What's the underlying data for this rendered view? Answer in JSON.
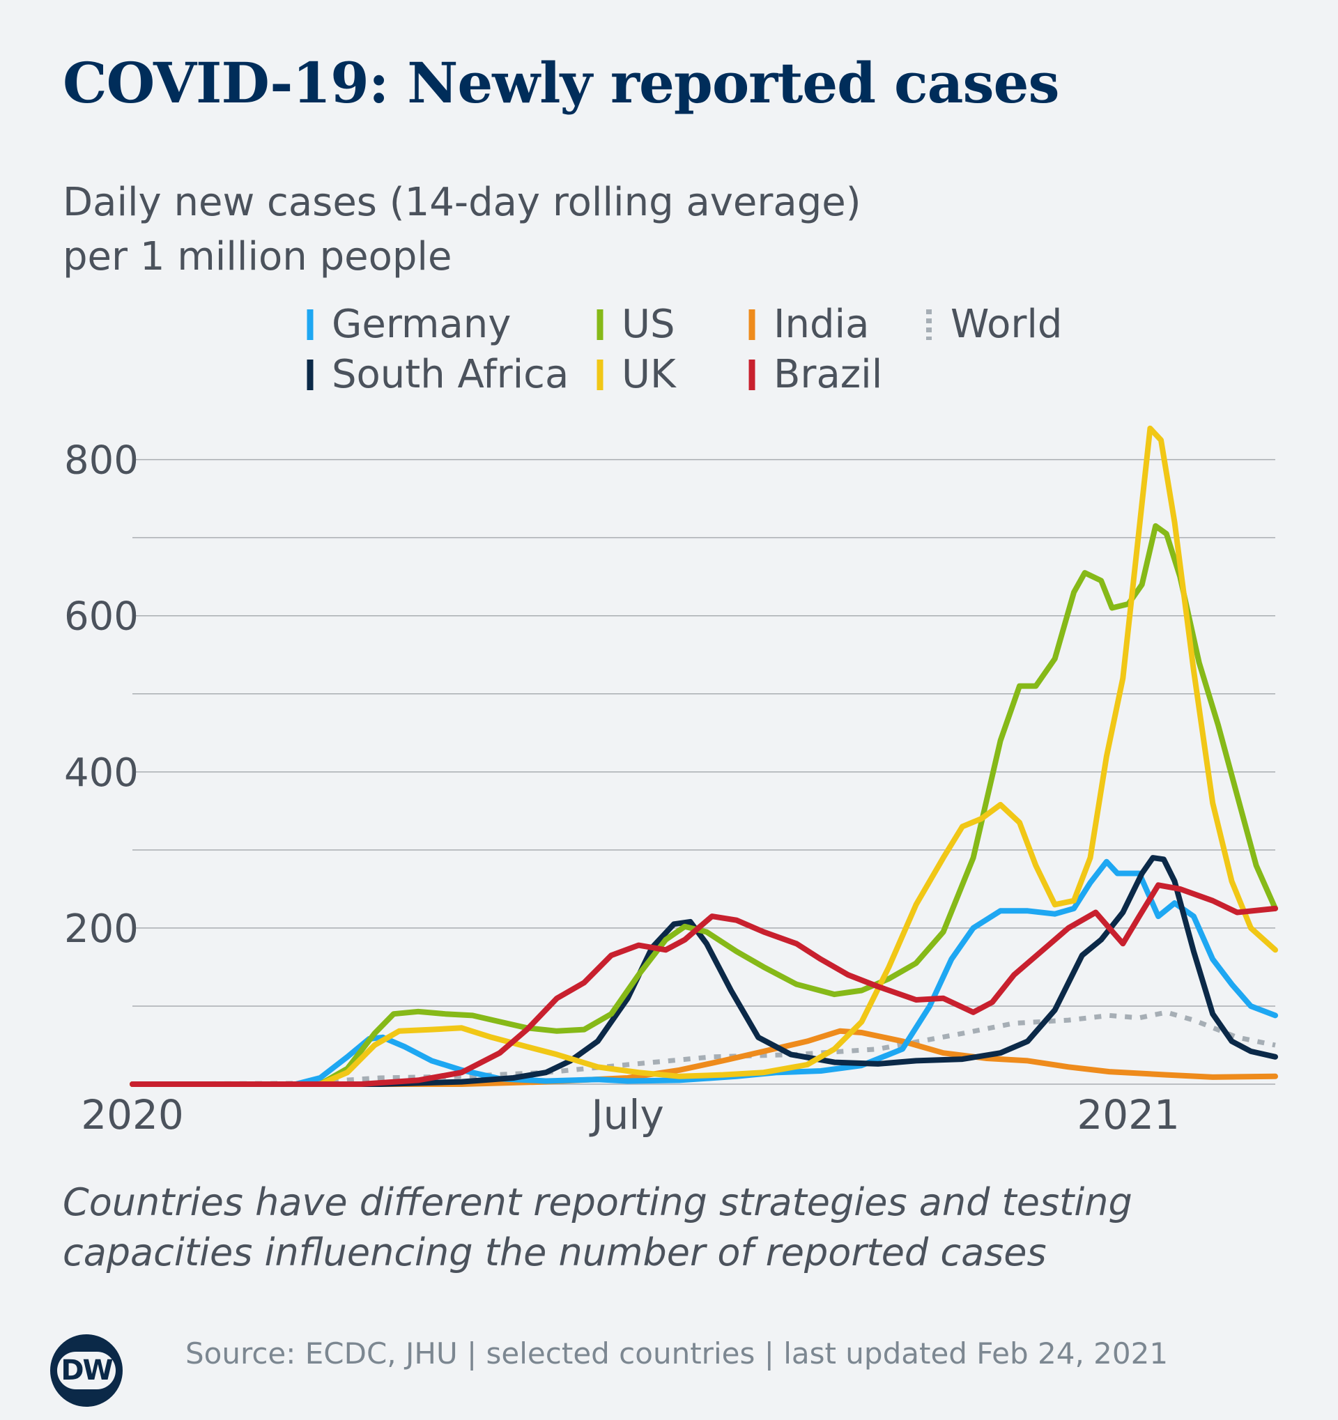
{
  "header": {
    "title": "COVID-19: Newly reported cases",
    "subtitle_line1": "Daily new cases (14-day rolling average)",
    "subtitle_line2": "per 1 million people"
  },
  "footer": {
    "note_line1": "Countries have different reporting strategies and testing",
    "note_line2": "capacities influencing the number of reported cases",
    "source": "Source: ECDC, JHU | selected countries | last updated Feb 24, 2021",
    "logo_text": "DW"
  },
  "colors": {
    "Germany": "#1ea7f2",
    "South Africa": "#0b2948",
    "US": "#86b918",
    "UK": "#f1c716",
    "India": "#ee8b1c",
    "Brazil": "#c8202e",
    "World": "#a6aeb5",
    "grid": "#a9adb1"
  },
  "chart_data": {
    "type": "line",
    "title": "COVID-19: Newly reported cases",
    "ylabel": "Daily new cases (14-day rolling average) per 1 million people",
    "x_unit": "date",
    "xlim": [
      "2020-01-01",
      "2021-02-24"
    ],
    "ylim": [
      0,
      880
    ],
    "y_ticks": [
      200,
      400,
      600,
      800
    ],
    "y_gridlines": [
      100,
      200,
      300,
      400,
      500,
      600,
      700,
      800
    ],
    "x_ticks": [
      {
        "label": "2020",
        "date": "2020-01-01"
      },
      {
        "label": "July",
        "date": "2020-07-01"
      },
      {
        "label": "2021",
        "date": "2021-01-01"
      }
    ],
    "grid": true,
    "legend_position": "top",
    "legend_order": [
      "Germany",
      "US",
      "India",
      "World",
      "South Africa",
      "UK",
      "Brazil"
    ],
    "series": [
      {
        "name": "Germany",
        "dashed": false,
        "points": [
          [
            "2020-01-01",
            0
          ],
          [
            "2020-03-01",
            0
          ],
          [
            "2020-03-10",
            8
          ],
          [
            "2020-03-20",
            35
          ],
          [
            "2020-03-28",
            58
          ],
          [
            "2020-04-02",
            60
          ],
          [
            "2020-04-10",
            48
          ],
          [
            "2020-04-20",
            30
          ],
          [
            "2020-05-01",
            18
          ],
          [
            "2020-05-15",
            7
          ],
          [
            "2020-06-01",
            4
          ],
          [
            "2020-06-20",
            6
          ],
          [
            "2020-07-01",
            4
          ],
          [
            "2020-07-20",
            5
          ],
          [
            "2020-08-10",
            10
          ],
          [
            "2020-08-25",
            15
          ],
          [
            "2020-09-10",
            17
          ],
          [
            "2020-09-25",
            24
          ],
          [
            "2020-10-10",
            45
          ],
          [
            "2020-10-20",
            100
          ],
          [
            "2020-10-28",
            160
          ],
          [
            "2020-11-05",
            200
          ],
          [
            "2020-11-15",
            222
          ],
          [
            "2020-11-25",
            222
          ],
          [
            "2020-12-05",
            218
          ],
          [
            "2020-12-12",
            225
          ],
          [
            "2020-12-18",
            258
          ],
          [
            "2020-12-24",
            285
          ],
          [
            "2020-12-28",
            270
          ],
          [
            "2021-01-05",
            270
          ],
          [
            "2021-01-12",
            215
          ],
          [
            "2021-01-18",
            232
          ],
          [
            "2021-01-25",
            215
          ],
          [
            "2021-02-01",
            160
          ],
          [
            "2021-02-08",
            128
          ],
          [
            "2021-02-15",
            100
          ],
          [
            "2021-02-24",
            88
          ]
        ]
      },
      {
        "name": "South Africa",
        "dashed": false,
        "points": [
          [
            "2020-01-01",
            0
          ],
          [
            "2020-04-01",
            0
          ],
          [
            "2020-05-01",
            3
          ],
          [
            "2020-05-20",
            8
          ],
          [
            "2020-06-01",
            15
          ],
          [
            "2020-06-10",
            30
          ],
          [
            "2020-06-20",
            55
          ],
          [
            "2020-07-01",
            110
          ],
          [
            "2020-07-10",
            175
          ],
          [
            "2020-07-18",
            205
          ],
          [
            "2020-07-24",
            208
          ],
          [
            "2020-07-30",
            180
          ],
          [
            "2020-08-08",
            120
          ],
          [
            "2020-08-18",
            60
          ],
          [
            "2020-08-30",
            38
          ],
          [
            "2020-09-15",
            28
          ],
          [
            "2020-10-01",
            26
          ],
          [
            "2020-10-15",
            30
          ],
          [
            "2020-11-01",
            32
          ],
          [
            "2020-11-15",
            40
          ],
          [
            "2020-11-25",
            55
          ],
          [
            "2020-12-05",
            95
          ],
          [
            "2020-12-15",
            165
          ],
          [
            "2020-12-22",
            185
          ],
          [
            "2020-12-30",
            220
          ],
          [
            "2021-01-06",
            270
          ],
          [
            "2021-01-10",
            290
          ],
          [
            "2021-01-14",
            288
          ],
          [
            "2021-01-18",
            260
          ],
          [
            "2021-01-25",
            170
          ],
          [
            "2021-02-01",
            90
          ],
          [
            "2021-02-08",
            55
          ],
          [
            "2021-02-15",
            42
          ],
          [
            "2021-02-24",
            35
          ]
        ]
      },
      {
        "name": "US",
        "dashed": false,
        "points": [
          [
            "2020-01-01",
            0
          ],
          [
            "2020-03-10",
            0
          ],
          [
            "2020-03-20",
            20
          ],
          [
            "2020-03-30",
            65
          ],
          [
            "2020-04-06",
            90
          ],
          [
            "2020-04-15",
            93
          ],
          [
            "2020-04-25",
            90
          ],
          [
            "2020-05-05",
            88
          ],
          [
            "2020-05-15",
            80
          ],
          [
            "2020-05-25",
            72
          ],
          [
            "2020-06-05",
            68
          ],
          [
            "2020-06-15",
            70
          ],
          [
            "2020-06-25",
            90
          ],
          [
            "2020-07-05",
            140
          ],
          [
            "2020-07-15",
            185
          ],
          [
            "2020-07-22",
            202
          ],
          [
            "2020-07-30",
            195
          ],
          [
            "2020-08-10",
            170
          ],
          [
            "2020-08-20",
            150
          ],
          [
            "2020-09-01",
            128
          ],
          [
            "2020-09-15",
            115
          ],
          [
            "2020-09-25",
            120
          ],
          [
            "2020-10-05",
            135
          ],
          [
            "2020-10-15",
            155
          ],
          [
            "2020-10-25",
            195
          ],
          [
            "2020-11-05",
            290
          ],
          [
            "2020-11-15",
            440
          ],
          [
            "2020-11-22",
            510
          ],
          [
            "2020-11-28",
            510
          ],
          [
            "2020-12-05",
            545
          ],
          [
            "2020-12-12",
            630
          ],
          [
            "2020-12-16",
            655
          ],
          [
            "2020-12-22",
            645
          ],
          [
            "2020-12-26",
            610
          ],
          [
            "2021-01-01",
            615
          ],
          [
            "2021-01-06",
            640
          ],
          [
            "2021-01-11",
            715
          ],
          [
            "2021-01-15",
            705
          ],
          [
            "2021-01-20",
            650
          ],
          [
            "2021-01-27",
            540
          ],
          [
            "2021-02-03",
            460
          ],
          [
            "2021-02-10",
            370
          ],
          [
            "2021-02-17",
            280
          ],
          [
            "2021-02-24",
            225
          ]
        ]
      },
      {
        "name": "UK",
        "dashed": false,
        "points": [
          [
            "2020-01-01",
            0
          ],
          [
            "2020-03-10",
            0
          ],
          [
            "2020-03-20",
            15
          ],
          [
            "2020-03-30",
            50
          ],
          [
            "2020-04-08",
            68
          ],
          [
            "2020-04-20",
            70
          ],
          [
            "2020-05-01",
            72
          ],
          [
            "2020-05-12",
            60
          ],
          [
            "2020-05-25",
            48
          ],
          [
            "2020-06-05",
            38
          ],
          [
            "2020-06-20",
            22
          ],
          [
            "2020-07-05",
            15
          ],
          [
            "2020-07-20",
            10
          ],
          [
            "2020-08-05",
            12
          ],
          [
            "2020-08-20",
            15
          ],
          [
            "2020-09-05",
            25
          ],
          [
            "2020-09-15",
            45
          ],
          [
            "2020-09-25",
            80
          ],
          [
            "2020-10-05",
            150
          ],
          [
            "2020-10-15",
            230
          ],
          [
            "2020-10-25",
            290
          ],
          [
            "2020-11-01",
            330
          ],
          [
            "2020-11-08",
            340
          ],
          [
            "2020-11-15",
            358
          ],
          [
            "2020-11-22",
            335
          ],
          [
            "2020-11-28",
            280
          ],
          [
            "2020-12-05",
            230
          ],
          [
            "2020-12-12",
            235
          ],
          [
            "2020-12-18",
            290
          ],
          [
            "2020-12-24",
            420
          ],
          [
            "2020-12-30",
            520
          ],
          [
            "2021-01-04",
            680
          ],
          [
            "2021-01-09",
            840
          ],
          [
            "2021-01-13",
            825
          ],
          [
            "2021-01-18",
            720
          ],
          [
            "2021-01-25",
            530
          ],
          [
            "2021-02-01",
            360
          ],
          [
            "2021-02-08",
            260
          ],
          [
            "2021-02-15",
            200
          ],
          [
            "2021-02-24",
            172
          ]
        ]
      },
      {
        "name": "India",
        "dashed": false,
        "points": [
          [
            "2020-01-01",
            0
          ],
          [
            "2020-05-01",
            0
          ],
          [
            "2020-06-01",
            3
          ],
          [
            "2020-07-01",
            8
          ],
          [
            "2020-07-20",
            18
          ],
          [
            "2020-08-05",
            30
          ],
          [
            "2020-08-20",
            42
          ],
          [
            "2020-09-05",
            55
          ],
          [
            "2020-09-17",
            68
          ],
          [
            "2020-09-25",
            66
          ],
          [
            "2020-10-10",
            55
          ],
          [
            "2020-10-25",
            40
          ],
          [
            "2020-11-10",
            33
          ],
          [
            "2020-11-25",
            30
          ],
          [
            "2020-12-10",
            22
          ],
          [
            "2020-12-25",
            16
          ],
          [
            "2021-01-15",
            12
          ],
          [
            "2021-02-01",
            9
          ],
          [
            "2021-02-24",
            10
          ]
        ]
      },
      {
        "name": "Brazil",
        "dashed": false,
        "points": [
          [
            "2020-01-01",
            0
          ],
          [
            "2020-03-25",
            0
          ],
          [
            "2020-04-15",
            5
          ],
          [
            "2020-05-01",
            15
          ],
          [
            "2020-05-15",
            40
          ],
          [
            "2020-05-25",
            70
          ],
          [
            "2020-06-05",
            110
          ],
          [
            "2020-06-15",
            130
          ],
          [
            "2020-06-25",
            165
          ],
          [
            "2020-07-05",
            178
          ],
          [
            "2020-07-15",
            172
          ],
          [
            "2020-07-22",
            185
          ],
          [
            "2020-08-01",
            215
          ],
          [
            "2020-08-10",
            210
          ],
          [
            "2020-08-20",
            195
          ],
          [
            "2020-09-01",
            180
          ],
          [
            "2020-09-10",
            160
          ],
          [
            "2020-09-20",
            140
          ],
          [
            "2020-10-01",
            125
          ],
          [
            "2020-10-15",
            108
          ],
          [
            "2020-10-25",
            110
          ],
          [
            "2020-11-05",
            92
          ],
          [
            "2020-11-12",
            105
          ],
          [
            "2020-11-20",
            140
          ],
          [
            "2020-11-30",
            170
          ],
          [
            "2020-12-10",
            200
          ],
          [
            "2020-12-20",
            220
          ],
          [
            "2020-12-30",
            180
          ],
          [
            "2021-01-05",
            215
          ],
          [
            "2021-01-12",
            255
          ],
          [
            "2021-01-20",
            250
          ],
          [
            "2021-02-01",
            235
          ],
          [
            "2021-02-10",
            220
          ],
          [
            "2021-02-24",
            225
          ]
        ]
      },
      {
        "name": "World",
        "dashed": true,
        "points": [
          [
            "2020-01-01",
            0
          ],
          [
            "2020-03-01",
            1
          ],
          [
            "2020-04-01",
            8
          ],
          [
            "2020-05-01",
            10
          ],
          [
            "2020-06-01",
            15
          ],
          [
            "2020-07-01",
            25
          ],
          [
            "2020-08-01",
            35
          ],
          [
            "2020-09-01",
            38
          ],
          [
            "2020-10-01",
            45
          ],
          [
            "2020-11-01",
            65
          ],
          [
            "2020-11-20",
            78
          ],
          [
            "2020-12-10",
            82
          ],
          [
            "2020-12-25",
            88
          ],
          [
            "2021-01-05",
            85
          ],
          [
            "2021-01-15",
            92
          ],
          [
            "2021-01-25",
            82
          ],
          [
            "2021-02-10",
            60
          ],
          [
            "2021-02-24",
            50
          ]
        ]
      }
    ]
  }
}
